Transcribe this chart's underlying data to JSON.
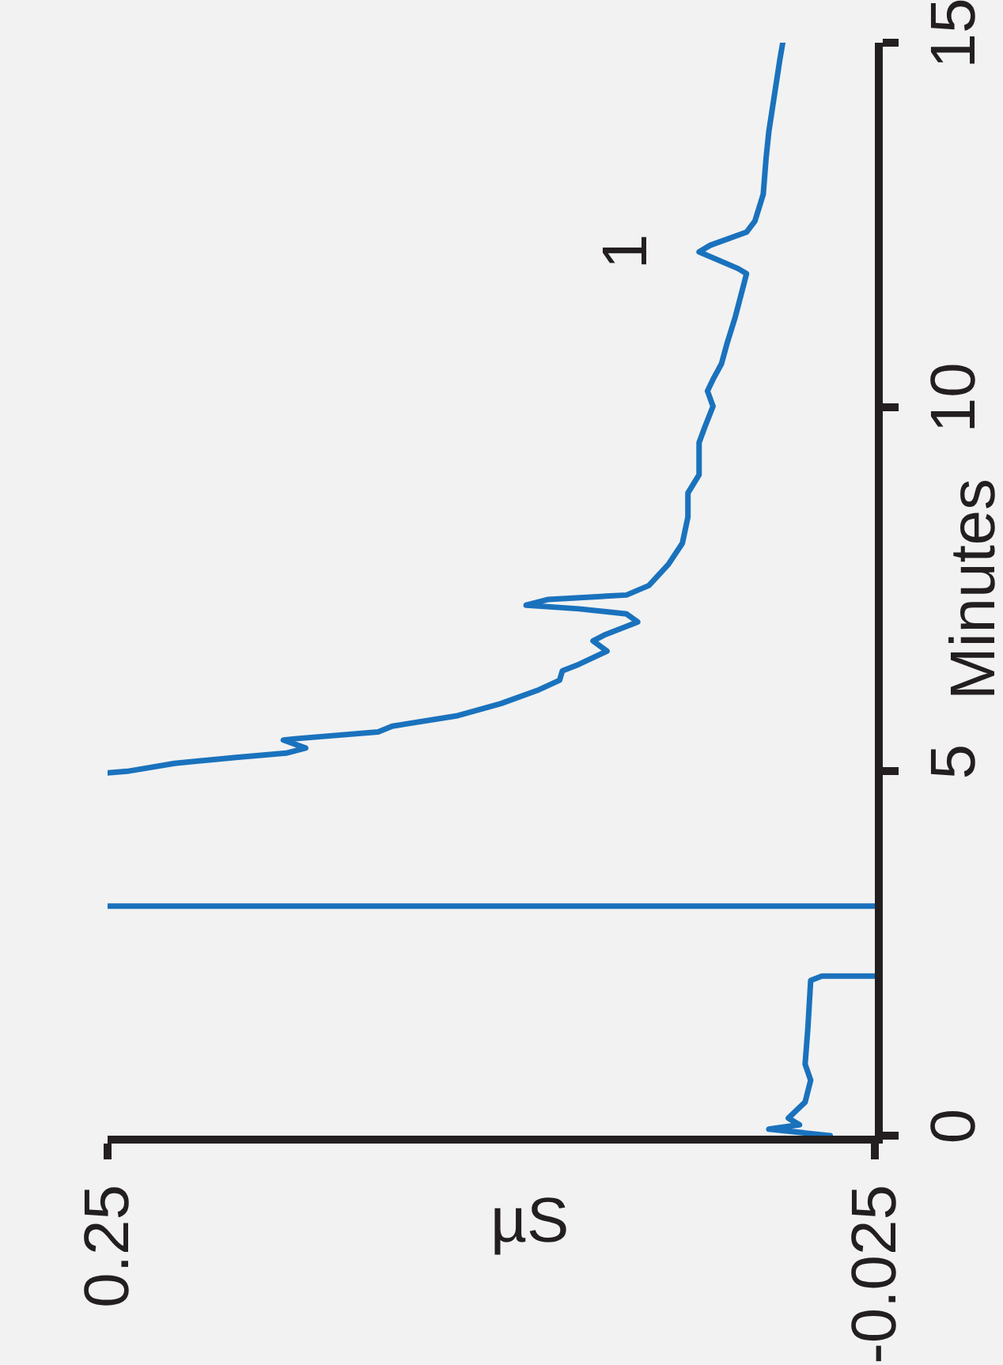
{
  "chart_data": {
    "type": "line",
    "xlabel": "µS",
    "ylabel": "Minutes",
    "xlim": [
      0.25,
      -0.025
    ],
    "xticks": [
      0.25,
      -0.025
    ],
    "ylim": [
      0,
      15
    ],
    "yticks": [
      0,
      5,
      10,
      15
    ],
    "annotations": [
      {
        "text": "1",
        "x": 0.038,
        "y": 12.13
      }
    ],
    "series": [
      {
        "color": "#1a72bd",
        "x": [
          -0.009,
          0.013,
          0.002,
          0.006,
          0.0,
          -0.002,
          0.0,
          -0.001,
          -0.002,
          -0.006,
          -0.025,
          null,
          -0.025,
          0.25,
          null,
          0.25,
          0.243,
          0.226,
          0.204,
          0.186,
          0.179,
          0.187,
          0.182,
          0.153,
          0.148,
          0.125,
          0.109,
          0.096,
          0.088,
          0.087,
          0.081,
          0.071,
          0.076,
          0.072,
          0.06,
          0.064,
          0.081,
          0.1,
          0.092,
          0.064,
          0.056,
          0.049,
          0.044,
          0.042,
          0.042,
          0.038,
          0.038,
          0.036,
          0.033,
          0.035,
          0.033,
          0.03,
          0.028,
          0.025,
          0.022,
          0.021,
          0.024,
          0.038,
          0.034,
          0.021,
          0.018,
          0.015,
          0.014,
          0.013,
          0.011,
          0.009,
          0.008
        ],
        "values": [
          0.0,
          0.09,
          0.15,
          0.24,
          0.46,
          0.76,
          0.98,
          1.48,
          2.13,
          2.19,
          2.19,
          null,
          3.15,
          3.15,
          null,
          4.98,
          5.0,
          5.11,
          5.19,
          5.25,
          5.32,
          5.43,
          5.45,
          5.54,
          5.62,
          5.76,
          5.93,
          6.11,
          6.25,
          6.38,
          6.47,
          6.65,
          6.79,
          6.87,
          7.05,
          7.16,
          7.23,
          7.28,
          7.36,
          7.42,
          7.55,
          7.84,
          8.13,
          8.49,
          8.82,
          9.07,
          9.51,
          9.72,
          10.01,
          10.22,
          10.38,
          10.59,
          10.87,
          11.24,
          11.68,
          11.83,
          11.9,
          12.13,
          12.22,
          12.4,
          12.55,
          12.92,
          13.41,
          13.78,
          14.28,
          14.78,
          15.0
        ]
      }
    ]
  }
}
